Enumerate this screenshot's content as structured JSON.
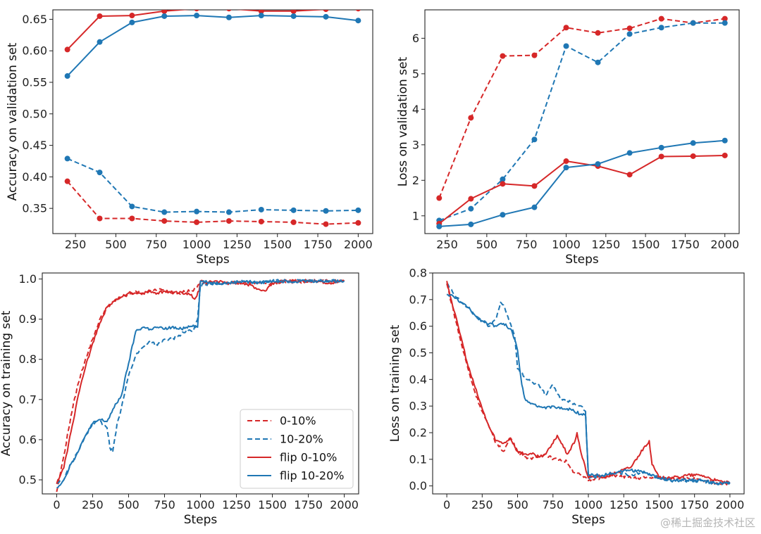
{
  "colors": {
    "red": "#d62728",
    "blue": "#1f77b4"
  },
  "watermark": "@稀土掘金技术社区",
  "chart_data": [
    {
      "type": "line",
      "xlabel": "Steps",
      "ylabel": "Accuracy on validation set",
      "xlim": [
        110,
        2090
      ],
      "ylim": [
        0.31,
        0.665
      ],
      "xticks": [
        250,
        500,
        750,
        1000,
        1250,
        1500,
        1750,
        2000
      ],
      "yticks": [
        0.35,
        0.4,
        0.45,
        0.5,
        0.55,
        0.6,
        0.65
      ],
      "ytick_labels": [
        "0.35",
        "0.40",
        "0.45",
        "0.50",
        "0.55",
        "0.60",
        "0.65"
      ],
      "x": [
        200,
        400,
        600,
        800,
        1000,
        1200,
        1400,
        1600,
        1800,
        2000
      ],
      "markers": true,
      "series": [
        {
          "name": "0-10%",
          "color": "red",
          "dash": true,
          "values": [
            0.393,
            0.334,
            0.334,
            0.33,
            0.328,
            0.33,
            0.329,
            0.328,
            0.325,
            0.327
          ]
        },
        {
          "name": "10-20%",
          "color": "blue",
          "dash": true,
          "values": [
            0.429,
            0.407,
            0.353,
            0.344,
            0.345,
            0.344,
            0.348,
            0.347,
            0.346,
            0.347
          ]
        },
        {
          "name": "flip 0-10%",
          "color": "red",
          "dash": false,
          "values": [
            0.602,
            0.655,
            0.656,
            0.663,
            0.667,
            0.667,
            0.663,
            0.663,
            0.666,
            0.667
          ]
        },
        {
          "name": "flip 10-20%",
          "color": "blue",
          "dash": false,
          "values": [
            0.56,
            0.614,
            0.645,
            0.655,
            0.656,
            0.653,
            0.656,
            0.655,
            0.654,
            0.648
          ]
        }
      ]
    },
    {
      "type": "line",
      "xlabel": "Steps",
      "ylabel": "Loss on validation set",
      "xlim": [
        110,
        2090
      ],
      "ylim": [
        0.5,
        6.8
      ],
      "xticks": [
        250,
        500,
        750,
        1000,
        1250,
        1500,
        1750,
        2000
      ],
      "yticks": [
        1,
        2,
        3,
        4,
        5,
        6
      ],
      "ytick_labels": [
        "1",
        "2",
        "3",
        "4",
        "5",
        "6"
      ],
      "x": [
        200,
        400,
        600,
        800,
        1000,
        1200,
        1400,
        1600,
        1800,
        2000
      ],
      "markers": true,
      "series": [
        {
          "name": "0-10%",
          "color": "red",
          "dash": true,
          "values": [
            1.5,
            3.76,
            5.5,
            5.52,
            6.3,
            6.15,
            6.28,
            6.55,
            6.43,
            6.55
          ]
        },
        {
          "name": "10-20%",
          "color": "blue",
          "dash": true,
          "values": [
            0.87,
            1.2,
            2.03,
            3.15,
            5.78,
            5.32,
            6.12,
            6.3,
            6.43,
            6.43
          ]
        },
        {
          "name": "flip 0-10%",
          "color": "red",
          "dash": false,
          "values": [
            0.78,
            1.48,
            1.9,
            1.84,
            2.54,
            2.4,
            2.16,
            2.67,
            2.68,
            2.7
          ]
        },
        {
          "name": "flip 10-20%",
          "color": "blue",
          "dash": false,
          "values": [
            0.7,
            0.76,
            1.03,
            1.24,
            2.36,
            2.46,
            2.77,
            2.92,
            3.05,
            3.12
          ]
        }
      ]
    },
    {
      "type": "line",
      "xlabel": "Steps",
      "ylabel": "Accuracy on training set",
      "xlim": [
        -100,
        2100
      ],
      "ylim": [
        0.465,
        1.015
      ],
      "xticks": [
        0,
        250,
        500,
        750,
        1000,
        1250,
        1500,
        1750,
        2000
      ],
      "yticks": [
        0.5,
        0.6,
        0.7,
        0.8,
        0.9,
        1.0
      ],
      "ytick_labels": [
        "0.5",
        "0.6",
        "0.7",
        "0.8",
        "0.9",
        "1.0"
      ],
      "noisy": true,
      "legend": {
        "position": "lower-right",
        "entries": [
          "0-10%",
          "10-20%",
          "flip 0-10%",
          "flip 10-20%"
        ]
      },
      "series": [
        {
          "name": "0-10%",
          "color": "red",
          "dash": true,
          "x": [
            0,
            50,
            100,
            150,
            200,
            250,
            300,
            350,
            400,
            450,
            500,
            550,
            600,
            650,
            700,
            750,
            800,
            850,
            900,
            950,
            1000,
            1050,
            1100,
            1200,
            1300,
            1400,
            1500,
            1600,
            1700,
            1800,
            1900,
            2000
          ],
          "values": [
            0.47,
            0.56,
            0.66,
            0.74,
            0.8,
            0.85,
            0.9,
            0.93,
            0.945,
            0.955,
            0.96,
            0.97,
            0.965,
            0.97,
            0.975,
            0.97,
            0.97,
            0.965,
            0.97,
            0.97,
            0.99,
            0.99,
            0.99,
            0.99,
            0.99,
            0.99,
            0.99,
            0.995,
            0.99,
            0.995,
            0.995,
            0.995
          ]
        },
        {
          "name": "10-20%",
          "color": "blue",
          "dash": true,
          "x": [
            0,
            50,
            100,
            150,
            200,
            250,
            300,
            350,
            370,
            390,
            420,
            450,
            500,
            550,
            600,
            650,
            700,
            750,
            800,
            850,
            900,
            950,
            980,
            1000,
            1100,
            1200,
            1300,
            1400,
            1500,
            1600,
            1700,
            1800,
            1900,
            2000
          ],
          "values": [
            0.49,
            0.5,
            0.54,
            0.57,
            0.61,
            0.64,
            0.645,
            0.63,
            0.58,
            0.57,
            0.64,
            0.68,
            0.76,
            0.81,
            0.83,
            0.845,
            0.835,
            0.85,
            0.85,
            0.86,
            0.87,
            0.87,
            0.9,
            0.985,
            0.99,
            0.99,
            0.995,
            0.99,
            0.995,
            0.995,
            0.995,
            0.995,
            0.995,
            0.995
          ]
        },
        {
          "name": "flip 0-10%",
          "color": "red",
          "dash": false,
          "x": [
            0,
            50,
            100,
            150,
            200,
            250,
            300,
            350,
            400,
            450,
            500,
            550,
            600,
            650,
            700,
            750,
            800,
            850,
            900,
            930,
            960,
            990,
            1000,
            1050,
            1100,
            1200,
            1300,
            1350,
            1400,
            1450,
            1500,
            1600,
            1700,
            1800,
            1900,
            2000
          ],
          "values": [
            0.49,
            0.53,
            0.62,
            0.71,
            0.78,
            0.84,
            0.89,
            0.93,
            0.945,
            0.955,
            0.965,
            0.965,
            0.965,
            0.97,
            0.965,
            0.97,
            0.965,
            0.965,
            0.965,
            0.96,
            0.95,
            0.97,
            0.995,
            0.99,
            0.995,
            0.99,
            0.99,
            0.985,
            0.975,
            0.97,
            0.99,
            0.995,
            0.995,
            0.995,
            0.99,
            0.995
          ]
        },
        {
          "name": "flip 10-20%",
          "color": "blue",
          "dash": false,
          "x": [
            0,
            50,
            100,
            150,
            200,
            250,
            300,
            350,
            400,
            450,
            500,
            550,
            600,
            650,
            700,
            750,
            800,
            850,
            900,
            950,
            980,
            1000,
            1100,
            1200,
            1300,
            1400,
            1500,
            1600,
            1700,
            1800,
            1900,
            2000
          ],
          "values": [
            0.48,
            0.5,
            0.54,
            0.57,
            0.61,
            0.64,
            0.65,
            0.645,
            0.68,
            0.71,
            0.79,
            0.87,
            0.88,
            0.875,
            0.88,
            0.875,
            0.88,
            0.875,
            0.88,
            0.885,
            0.88,
            0.995,
            0.99,
            0.99,
            0.995,
            0.99,
            0.995,
            0.995,
            0.995,
            0.995,
            0.995,
            0.995
          ]
        }
      ]
    },
    {
      "type": "line",
      "xlabel": "Steps",
      "ylabel": "Loss on training set",
      "xlim": [
        -100,
        2100
      ],
      "ylim": [
        -0.03,
        0.8
      ],
      "xticks": [
        0,
        250,
        500,
        750,
        1000,
        1250,
        1500,
        1750,
        2000
      ],
      "yticks": [
        0.0,
        0.1,
        0.2,
        0.3,
        0.4,
        0.5,
        0.6,
        0.7,
        0.8
      ],
      "ytick_labels": [
        "0.0",
        "0.1",
        "0.2",
        "0.3",
        "0.4",
        "0.5",
        "0.6",
        "0.7",
        "0.8"
      ],
      "noisy": true,
      "series": [
        {
          "name": "0-10%",
          "color": "red",
          "dash": true,
          "x": [
            0,
            50,
            100,
            150,
            200,
            250,
            300,
            350,
            400,
            450,
            500,
            550,
            600,
            650,
            700,
            750,
            800,
            850,
            900,
            950,
            1000,
            1050,
            1100,
            1200,
            1300,
            1400,
            1500,
            1600,
            1700,
            1800,
            1900,
            2000
          ],
          "values": [
            0.76,
            0.65,
            0.54,
            0.44,
            0.35,
            0.28,
            0.22,
            0.16,
            0.13,
            0.18,
            0.13,
            0.11,
            0.1,
            0.11,
            0.12,
            0.1,
            0.1,
            0.09,
            0.05,
            0.04,
            0.02,
            0.03,
            0.03,
            0.04,
            0.03,
            0.03,
            0.03,
            0.03,
            0.03,
            0.02,
            0.01,
            0.01
          ]
        },
        {
          "name": "10-20%",
          "color": "blue",
          "dash": true,
          "x": [
            0,
            50,
            100,
            150,
            200,
            250,
            300,
            350,
            380,
            400,
            450,
            480,
            500,
            550,
            600,
            650,
            700,
            750,
            800,
            850,
            900,
            950,
            980,
            1000,
            1100,
            1200,
            1300,
            1400,
            1500,
            1600,
            1700,
            1800,
            1900,
            2000
          ],
          "values": [
            0.76,
            0.72,
            0.69,
            0.67,
            0.64,
            0.62,
            0.6,
            0.63,
            0.69,
            0.68,
            0.61,
            0.56,
            0.44,
            0.41,
            0.39,
            0.38,
            0.34,
            0.38,
            0.33,
            0.32,
            0.31,
            0.3,
            0.28,
            0.03,
            0.04,
            0.05,
            0.04,
            0.05,
            0.03,
            0.02,
            0.02,
            0.02,
            0.01,
            0.01
          ]
        },
        {
          "name": "flip 0-10%",
          "color": "red",
          "dash": false,
          "x": [
            0,
            50,
            100,
            150,
            200,
            250,
            300,
            350,
            400,
            450,
            500,
            550,
            600,
            650,
            700,
            750,
            780,
            800,
            850,
            900,
            920,
            950,
            1000,
            1050,
            1100,
            1200,
            1300,
            1350,
            1400,
            1430,
            1450,
            1500,
            1600,
            1700,
            1800,
            1900,
            2000
          ],
          "values": [
            0.77,
            0.66,
            0.56,
            0.45,
            0.37,
            0.29,
            0.22,
            0.17,
            0.16,
            0.18,
            0.13,
            0.12,
            0.12,
            0.11,
            0.12,
            0.16,
            0.19,
            0.17,
            0.12,
            0.16,
            0.2,
            0.12,
            0.03,
            0.04,
            0.03,
            0.05,
            0.07,
            0.11,
            0.15,
            0.17,
            0.08,
            0.03,
            0.03,
            0.04,
            0.04,
            0.02,
            0.01
          ]
        },
        {
          "name": "flip 10-20%",
          "color": "blue",
          "dash": false,
          "x": [
            0,
            50,
            100,
            150,
            200,
            250,
            300,
            350,
            400,
            450,
            480,
            500,
            530,
            550,
            600,
            650,
            700,
            750,
            800,
            850,
            900,
            950,
            980,
            1000,
            1100,
            1200,
            1300,
            1400,
            1500,
            1600,
            1700,
            1800,
            1900,
            2000
          ],
          "values": [
            0.72,
            0.71,
            0.69,
            0.67,
            0.64,
            0.62,
            0.61,
            0.6,
            0.61,
            0.59,
            0.55,
            0.51,
            0.38,
            0.33,
            0.31,
            0.3,
            0.29,
            0.3,
            0.29,
            0.29,
            0.28,
            0.27,
            0.27,
            0.04,
            0.04,
            0.05,
            0.06,
            0.05,
            0.03,
            0.02,
            0.02,
            0.02,
            0.01,
            0.01
          ]
        }
      ]
    }
  ]
}
